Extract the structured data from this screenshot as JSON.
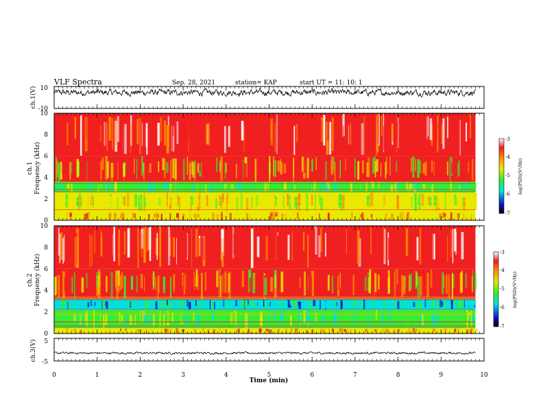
{
  "header": {
    "title": "VLF Spectra",
    "date": "Sep. 28, 2021",
    "station": "station= KAP",
    "start": "start  UT =   11: 10: 1"
  },
  "chart_data": [
    {
      "type": "line",
      "panel": "ch1-waveform",
      "ylabel": "ch.1(V)",
      "ylim": [
        -10,
        10
      ],
      "yticks": [
        "10",
        "-10"
      ],
      "x_range": [
        0,
        9.8
      ],
      "mean": 4.5,
      "fluctuation": 3,
      "color": "#000000"
    },
    {
      "type": "heatmap",
      "panel": "ch1-spectrogram",
      "ylabel": "ch.1\nFrequency  (kHz)",
      "ylim": [
        0,
        10
      ],
      "yticks": [
        "0",
        "2",
        "4",
        "6",
        "8",
        "10"
      ],
      "x_range": [
        0,
        9.8
      ],
      "bands_khz": [
        {
          "range": [
            0,
            0.8
          ],
          "level": "yellow"
        },
        {
          "range": [
            0.8,
            2.6
          ],
          "level": "yellow-green"
        },
        {
          "range": [
            2.6,
            3.6
          ],
          "level": "green-cyan"
        },
        {
          "range": [
            3.6,
            6
          ],
          "level": "orange-red"
        },
        {
          "range": [
            6,
            10
          ],
          "level": "red"
        }
      ],
      "colorbar": {
        "label": "log(PSD)(V²/Hz)",
        "range": [
          -7,
          -3
        ],
        "ticks": [
          "-3",
          "-4",
          "-5",
          "-6",
          "-7"
        ]
      }
    },
    {
      "type": "heatmap",
      "panel": "ch2-spectrogram",
      "ylabel": "ch.2\nFrequency  (kHz)",
      "ylim": [
        0,
        10
      ],
      "yticks": [
        "0",
        "2",
        "4",
        "6",
        "8",
        "10"
      ],
      "x_range": [
        0,
        9.8
      ],
      "bands_khz": [
        {
          "range": [
            0,
            0.5
          ],
          "level": "yellow"
        },
        {
          "range": [
            0.5,
            2.2
          ],
          "level": "green"
        },
        {
          "range": [
            2.2,
            3.2
          ],
          "level": "cyan-blue"
        },
        {
          "range": [
            3.2,
            6
          ],
          "level": "orange-red"
        },
        {
          "range": [
            6,
            10
          ],
          "level": "red"
        }
      ],
      "colorbar": {
        "label": "log(PSD)(V²/Hz)",
        "range": [
          -7,
          -3
        ],
        "ticks": [
          "-3",
          "-4",
          "-5",
          "-6",
          "-7"
        ]
      }
    },
    {
      "type": "line",
      "panel": "ch3-waveform",
      "ylabel": "ch.3(V)",
      "ylim": [
        -5,
        5
      ],
      "yticks": [
        "5",
        "-5"
      ],
      "x_range": [
        0,
        9.8
      ],
      "mean": -1.5,
      "fluctuation": 0.5,
      "color": "#000000"
    }
  ],
  "x_axis": {
    "label": "Time  (min)",
    "range": [
      0,
      10
    ],
    "ticks": [
      "0",
      "1",
      "2",
      "3",
      "4",
      "5",
      "6",
      "7",
      "8",
      "9",
      "10"
    ]
  },
  "colors": {
    "red": "#f02020",
    "orange": "#ff8a00",
    "yellow": "#e8e800",
    "green": "#33ee33",
    "cyan": "#00e0e0",
    "blue": "#1010cc"
  }
}
